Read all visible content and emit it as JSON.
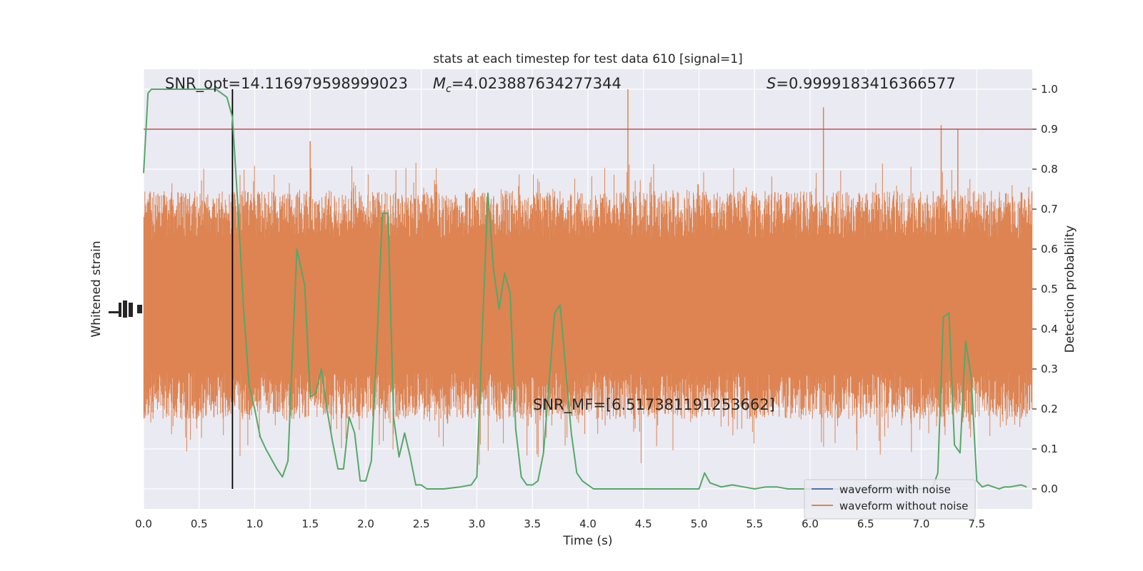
{
  "chart_data": {
    "type": "line",
    "title": "stats at each timestep for test data 610 [signal=1]",
    "xlabel": "Time (s)",
    "ylabel_left": "Whitened strain",
    "ylabel_right": "Detection probability",
    "xlim": [
      0.0,
      8.0
    ],
    "ylim_right": [
      -0.05,
      1.05
    ],
    "x_ticks": [
      "0.0",
      "0.5",
      "1.0",
      "1.5",
      "2.0",
      "2.5",
      "3.0",
      "3.5",
      "4.0",
      "4.5",
      "5.0",
      "5.5",
      "6.0",
      "6.5",
      "7.0",
      "7.5"
    ],
    "y_right_ticks": [
      "0.0",
      "0.1",
      "0.2",
      "0.3",
      "0.4",
      "0.5",
      "0.6",
      "0.7",
      "0.8",
      "0.9",
      "1.0"
    ],
    "grid": true,
    "legend_position": "lower-right",
    "annotations": {
      "snr_opt": "SNR_opt=14.116979598999023",
      "chirp_mass_prefix": "M",
      "chirp_mass_sub": "c",
      "chirp_mass_value": "=4.023887634277344",
      "s_prefix": "S",
      "s_value": "=0.9999183416366577",
      "snr_mf": "SNR_MF=[6.517381191253662]"
    },
    "threshold": 0.9,
    "merger_time": 0.8,
    "series": [
      {
        "name": "waveform with noise",
        "color": "#4c72b0",
        "values": []
      },
      {
        "name": "waveform without noise",
        "color": "#dd8452",
        "envelope_center": 0.46,
        "envelope_typical_half_width": 0.22,
        "peaks": [
          [
            4.36,
            1.0
          ],
          [
            6.12,
            0.955
          ],
          [
            7.18,
            0.91
          ],
          [
            7.33,
            0.9
          ],
          [
            1.5,
            0.87
          ]
        ]
      },
      {
        "name": "detection probability",
        "color": "#55a868",
        "x": [
          0.0,
          0.04,
          0.07,
          0.12,
          0.2,
          0.3,
          0.4,
          0.5,
          0.6,
          0.65,
          0.7,
          0.75,
          0.8,
          0.85,
          0.9,
          0.95,
          1.0,
          1.05,
          1.1,
          1.2,
          1.25,
          1.3,
          1.38,
          1.45,
          1.5,
          1.55,
          1.6,
          1.65,
          1.7,
          1.75,
          1.8,
          1.85,
          1.9,
          1.95,
          2.0,
          2.05,
          2.1,
          2.15,
          2.2,
          2.25,
          2.3,
          2.35,
          2.4,
          2.45,
          2.5,
          2.55,
          2.6,
          2.7,
          2.85,
          2.95,
          3.0,
          3.05,
          3.1,
          3.15,
          3.2,
          3.25,
          3.3,
          3.35,
          3.4,
          3.45,
          3.5,
          3.55,
          3.6,
          3.7,
          3.75,
          3.8,
          3.85,
          3.9,
          3.95,
          4.0,
          4.05,
          4.1,
          4.15,
          4.2,
          4.3,
          4.5,
          4.8,
          4.9,
          4.95,
          5.0,
          5.05,
          5.1,
          5.2,
          5.3,
          5.4,
          5.5,
          5.6,
          5.7,
          5.8,
          5.9,
          6.0,
          6.1,
          6.2,
          6.3,
          6.5,
          6.7,
          6.9,
          7.0,
          7.1,
          7.15,
          7.2,
          7.25,
          7.3,
          7.35,
          7.4,
          7.45,
          7.5,
          7.55,
          7.6,
          7.65,
          7.7,
          7.75,
          7.8,
          7.9,
          7.95
        ],
        "values": [
          0.79,
          0.99,
          1.0,
          1.0,
          1.0,
          1.0,
          1.0,
          1.0,
          1.0,
          1.0,
          0.99,
          0.98,
          0.93,
          0.7,
          0.45,
          0.26,
          0.2,
          0.13,
          0.1,
          0.05,
          0.03,
          0.07,
          0.6,
          0.51,
          0.23,
          0.24,
          0.3,
          0.2,
          0.12,
          0.05,
          0.05,
          0.18,
          0.14,
          0.02,
          0.02,
          0.07,
          0.36,
          0.69,
          0.69,
          0.18,
          0.08,
          0.14,
          0.08,
          0.01,
          0.01,
          0.0,
          0.0,
          0.0,
          0.005,
          0.01,
          0.03,
          0.4,
          0.74,
          0.55,
          0.45,
          0.54,
          0.49,
          0.15,
          0.03,
          0.01,
          0.01,
          0.02,
          0.09,
          0.44,
          0.46,
          0.3,
          0.14,
          0.04,
          0.02,
          0.01,
          0.0,
          0.0,
          0.0,
          0.0,
          0.0,
          0.0,
          0.0,
          0.0,
          0.0,
          0.0,
          0.04,
          0.015,
          0.005,
          0.01,
          0.005,
          0.0,
          0.005,
          0.005,
          0.0,
          0.0,
          0.0,
          0.0,
          0.0,
          0.0,
          0.0,
          0.0,
          0.0,
          0.0,
          0.0,
          0.04,
          0.43,
          0.44,
          0.11,
          0.09,
          0.37,
          0.28,
          0.02,
          0.005,
          0.01,
          0.005,
          0.0,
          0.005,
          0.005,
          0.01,
          0.005
        ]
      }
    ]
  }
}
